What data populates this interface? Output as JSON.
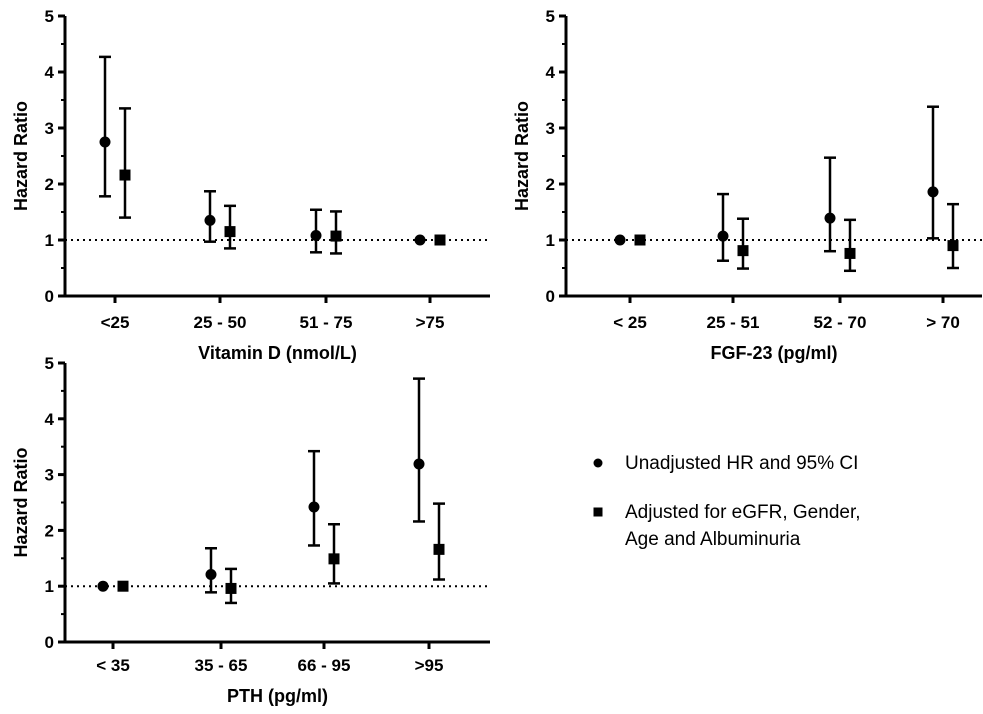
{
  "legend": {
    "items": [
      {
        "marker": "circle",
        "label_lines": [
          "Unadjusted HR and 95% CI"
        ]
      },
      {
        "marker": "square",
        "label_lines": [
          "Adjusted for eGFR, Gender,",
          "Age and Albuminuria"
        ]
      }
    ]
  },
  "colors": {
    "ink": "#000000",
    "background": "#ffffff"
  },
  "chart_data": [
    {
      "type": "scatter",
      "error_bars": true,
      "xlabel": "Vitamin D (nmol/L)",
      "ylabel": "Hazard Ratio",
      "ylim": [
        0,
        5
      ],
      "yticks": [
        "0",
        "1",
        "2",
        "3",
        "4",
        "5"
      ],
      "categories": [
        "<25",
        "25 - 50",
        "51 - 75",
        ">75"
      ],
      "reference_line": 1,
      "series": [
        {
          "marker": "circle",
          "values": [
            2.75,
            1.35,
            1.08,
            1.0
          ],
          "lower": [
            1.78,
            0.97,
            0.78,
            1.0
          ],
          "upper": [
            4.27,
            1.87,
            1.54,
            1.0
          ]
        },
        {
          "marker": "square",
          "values": [
            2.16,
            1.15,
            1.07,
            1.0
          ],
          "lower": [
            1.4,
            0.85,
            0.76,
            1.0
          ],
          "upper": [
            3.35,
            1.61,
            1.51,
            1.0
          ]
        }
      ]
    },
    {
      "type": "scatter",
      "error_bars": true,
      "xlabel": "FGF-23 (pg/ml)",
      "ylabel": "Hazard Ratio",
      "ylim": [
        0,
        5
      ],
      "yticks": [
        "0",
        "1",
        "2",
        "3",
        "4",
        "5"
      ],
      "categories": [
        "< 25",
        "25 - 51",
        "52 - 70",
        "> 70"
      ],
      "reference_line": 1,
      "series": [
        {
          "marker": "circle",
          "values": [
            1.0,
            1.07,
            1.39,
            1.86
          ],
          "lower": [
            1.0,
            0.63,
            0.8,
            1.03
          ],
          "upper": [
            1.0,
            1.82,
            2.47,
            3.38
          ]
        },
        {
          "marker": "square",
          "values": [
            1.0,
            0.81,
            0.76,
            0.9
          ],
          "lower": [
            1.0,
            0.49,
            0.45,
            0.5
          ],
          "upper": [
            1.0,
            1.38,
            1.36,
            1.64
          ]
        }
      ]
    },
    {
      "type": "scatter",
      "error_bars": true,
      "xlabel": "PTH (pg/ml)",
      "ylabel": "Hazard Ratio",
      "ylim": [
        0,
        5
      ],
      "yticks": [
        "0",
        "1",
        "2",
        "3",
        "4",
        "5"
      ],
      "categories": [
        "< 35",
        "35 - 65",
        "66 - 95",
        ">95"
      ],
      "reference_line": 1,
      "series": [
        {
          "marker": "circle",
          "values": [
            1.0,
            1.21,
            2.42,
            3.19
          ],
          "lower": [
            1.0,
            0.89,
            1.73,
            2.16
          ],
          "upper": [
            1.0,
            1.68,
            3.42,
            4.72
          ]
        },
        {
          "marker": "square",
          "values": [
            1.0,
            0.96,
            1.49,
            1.66
          ],
          "lower": [
            1.0,
            0.7,
            1.05,
            1.12
          ],
          "upper": [
            1.0,
            1.31,
            2.11,
            2.48
          ]
        }
      ]
    }
  ]
}
